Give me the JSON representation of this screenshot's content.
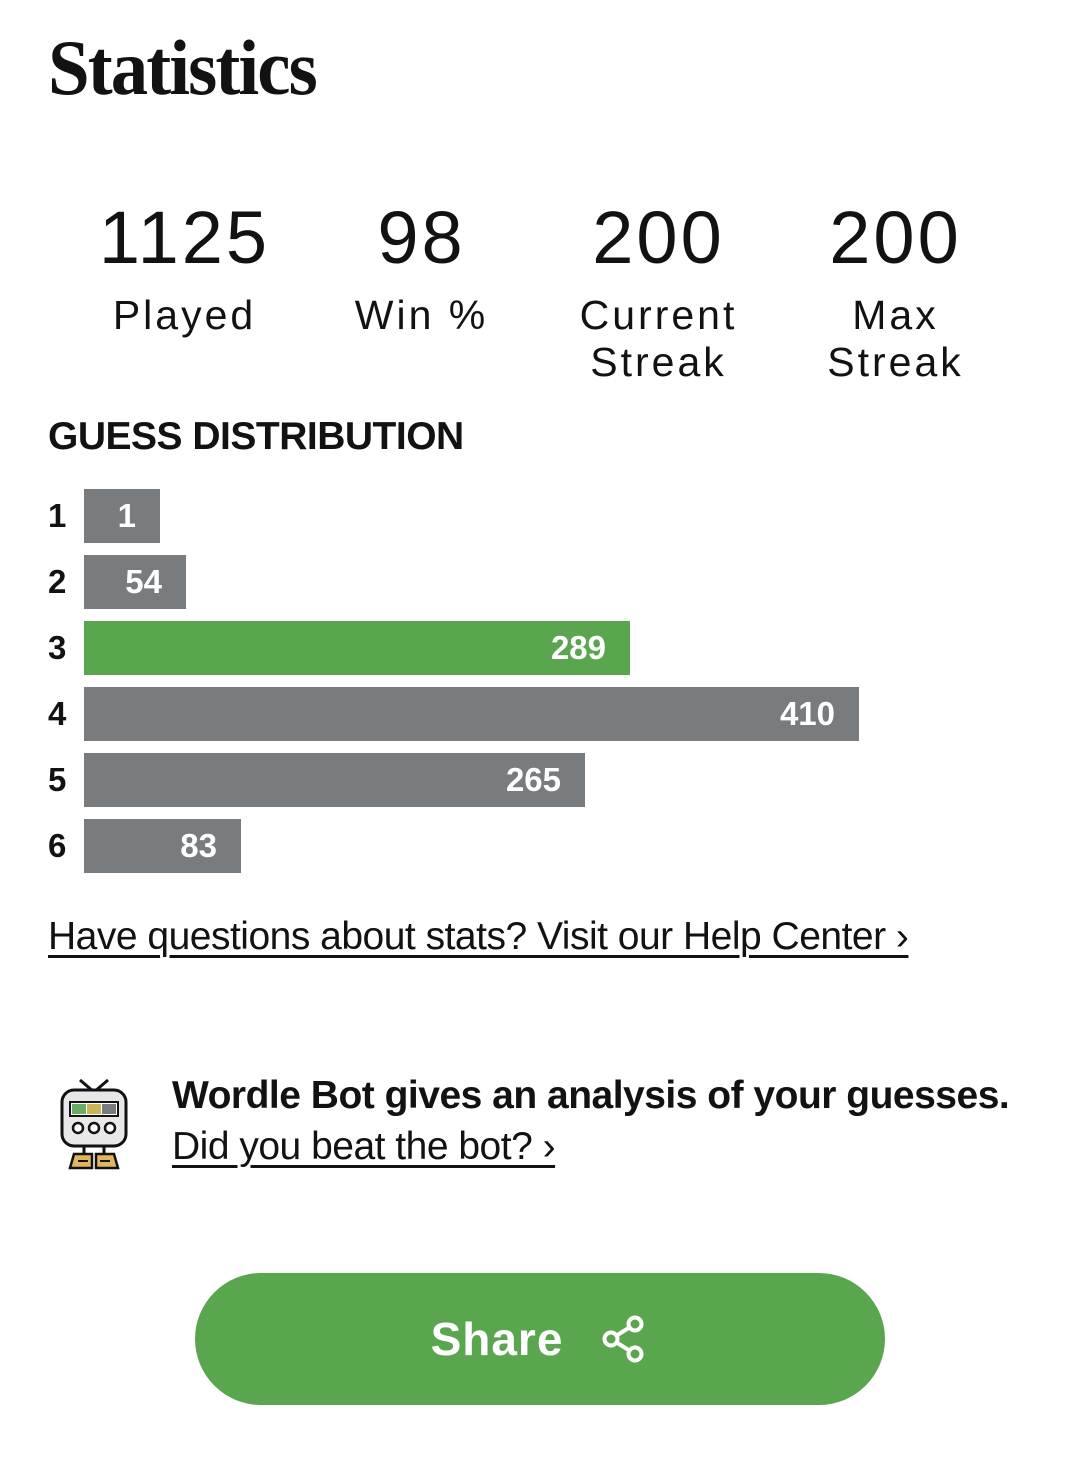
{
  "header": {
    "title": "Statistics"
  },
  "stats": [
    {
      "value": "1125",
      "label": "Played"
    },
    {
      "value": "98",
      "label": "Win %"
    },
    {
      "value": "200",
      "label": "Current\nStreak"
    },
    {
      "value": "200",
      "label": "Max\nStreak"
    }
  ],
  "distribution": {
    "title": "GUESS DISTRIBUTION",
    "max": 410,
    "highlight_index": 3,
    "rows": [
      {
        "index": "1",
        "count": 1
      },
      {
        "index": "2",
        "count": 54
      },
      {
        "index": "3",
        "count": 289
      },
      {
        "index": "4",
        "count": 410
      },
      {
        "index": "5",
        "count": 265
      },
      {
        "index": "6",
        "count": 83
      }
    ],
    "bar_color": "#787c7e",
    "highlight_color": "#5aa64f"
  },
  "help": {
    "link_text": "Have questions about stats? Visit our Help Center ›"
  },
  "bot": {
    "icon": "wordle-bot-icon",
    "headline": "Wordle Bot gives an analysis of your guesses.",
    "link_text": "Did you beat the bot? ›"
  },
  "share": {
    "label": "Share",
    "icon": "share-icon",
    "color": "#5aa64f"
  }
}
